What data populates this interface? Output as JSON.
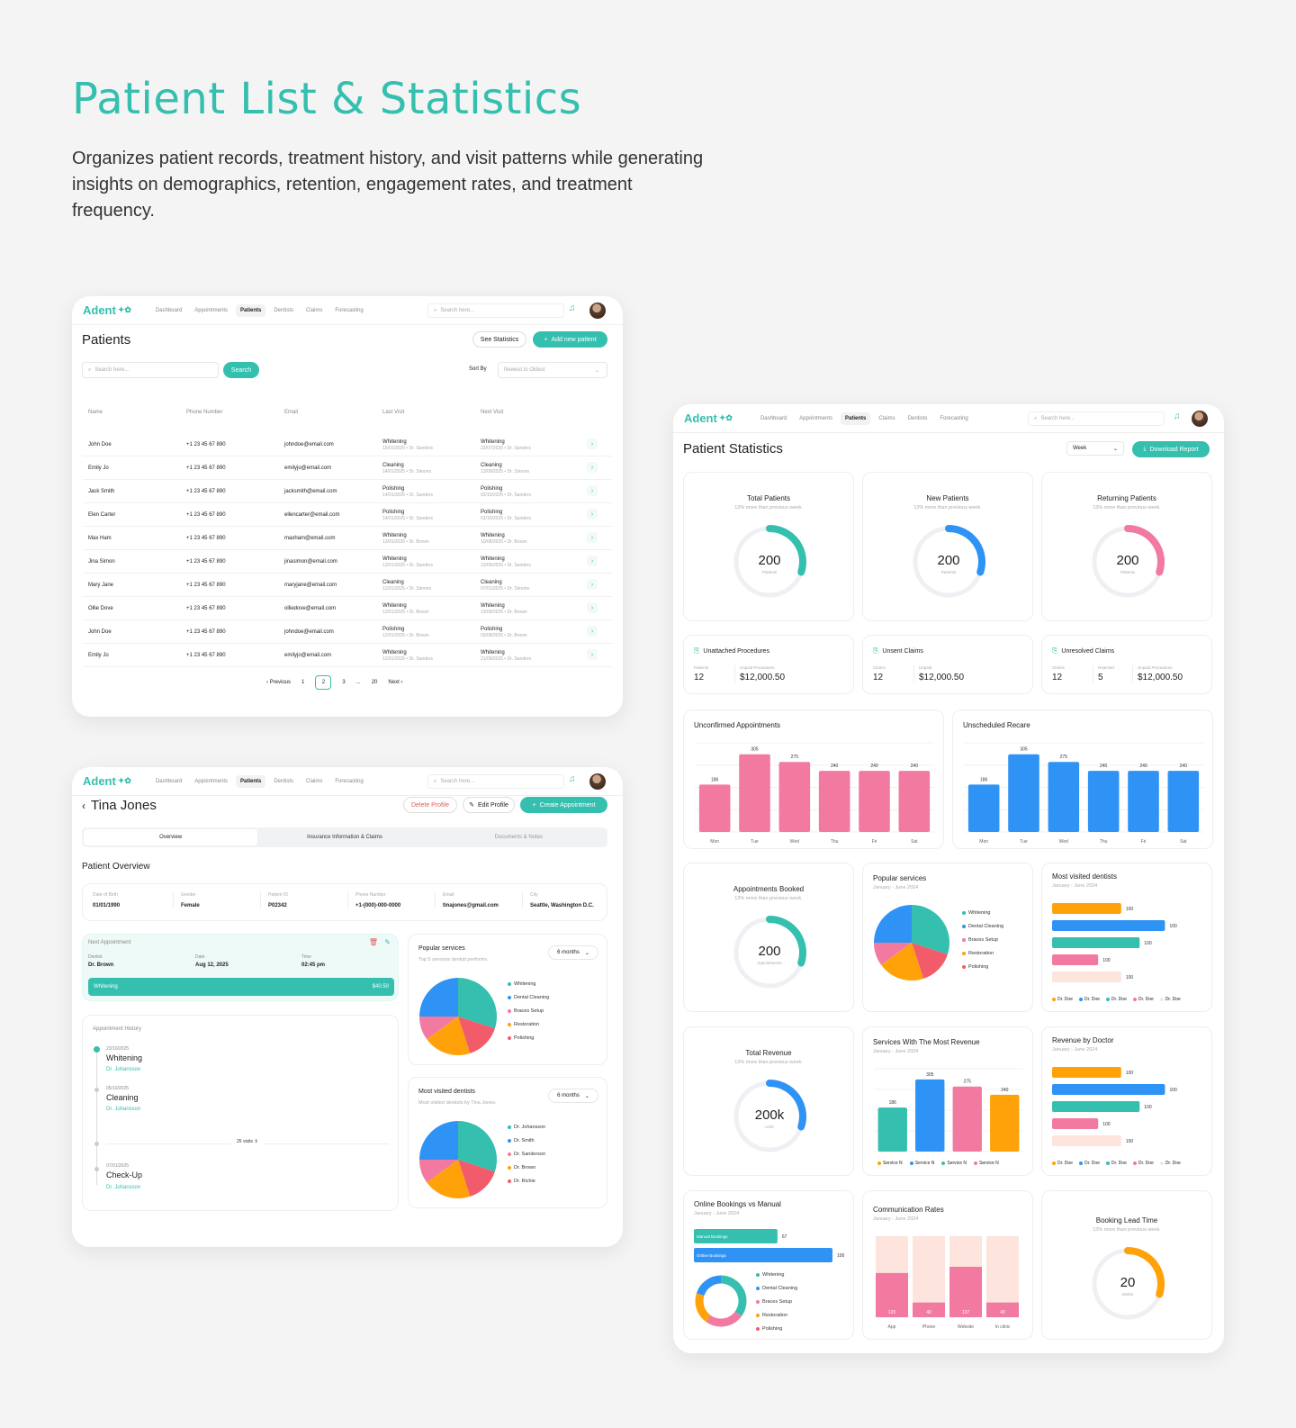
{
  "hero": {
    "title": "Patient List & Statistics",
    "description": "Organizes patient records, treatment history, and visit patterns while generating insights on demographics, retention, engagement rates, and treatment frequency."
  },
  "brand": {
    "name": "Adent",
    "accent": "#35bfae"
  },
  "nav": {
    "items": [
      "Dashboard",
      "Appointments",
      "Patients",
      "Dentists",
      "Claims",
      "Forecasting"
    ],
    "items_stats": [
      "Dashboard",
      "Appointments",
      "Patients",
      "Claims",
      "Dentists",
      "Forecasting"
    ],
    "active": "Patients",
    "search_placeholder": "Search here..."
  },
  "patients": {
    "title": "Patients",
    "see_statistics": "See Statistics",
    "add_new": "Add new patient",
    "search_placeholder": "Search here...",
    "search_button": "Search",
    "sort_label": "Sort By",
    "sort_value": "Newest to Oldest",
    "columns": [
      "Name",
      "Phone Number",
      "Email",
      "Last Visit",
      "Next Visit"
    ],
    "rows": [
      {
        "name": "John Doe",
        "phone": "+1 23 45 67 890",
        "email": "johndoe@email.com",
        "last": "Whitening",
        "last_sub": "15/01/2025 • Dr. Sanders",
        "next": "Whitening",
        "next_sub": "23/07/2025 • Dr. Sanders"
      },
      {
        "name": "Emily Jo",
        "phone": "+1 23 45 67 890",
        "email": "emilyjo@email.com",
        "last": "Cleaning",
        "last_sub": "14/01/2025 • Dr. Simons",
        "next": "Cleaning",
        "next_sub": "13/09/2025 • Dr. Simons"
      },
      {
        "name": "Jack Smith",
        "phone": "+1 23 45 67 890",
        "email": "jacksmith@email.com",
        "last": "Polishing",
        "last_sub": "14/01/2025 • Dr. Sanders",
        "next": "Polishing",
        "next_sub": "02/10/2025 • Dr. Sanders"
      },
      {
        "name": "Elen Carter",
        "phone": "+1 23 45 67 890",
        "email": "ellencarter@email.com",
        "last": "Polishing",
        "last_sub": "14/01/2025 • Dr. Sanders",
        "next": "Polishing",
        "next_sub": "01/10/2025 • Dr. Sanders"
      },
      {
        "name": "Max Ham",
        "phone": "+1 23 45 67 890",
        "email": "maxham@email.com",
        "last": "Whitening",
        "last_sub": "13/01/2025 • Dr. Brown",
        "next": "Whitening",
        "next_sub": "10/08/2025 • Dr. Brown"
      },
      {
        "name": "Jina Simon",
        "phone": "+1 23 45 67 890",
        "email": "jinasimon@email.com",
        "last": "Whitening",
        "last_sub": "13/01/2025 • Dr. Sanders",
        "next": "Whitening",
        "next_sub": "13/09/2025 • Dr. Sanders"
      },
      {
        "name": "Mary Jane",
        "phone": "+1 23 45 67 890",
        "email": "maryjane@email.com",
        "last": "Cleaning",
        "last_sub": "12/01/2025 • Dr. Simons",
        "next": "Cleaning",
        "next_sub": "07/01/2025 • Dr. Simons"
      },
      {
        "name": "Ollie Dove",
        "phone": "+1 23 45 67 890",
        "email": "olliedove@email.com",
        "last": "Whitening",
        "last_sub": "12/01/2025 • Dr. Brown",
        "next": "Whitening",
        "next_sub": "13/09/2025 • Dr. Brown"
      },
      {
        "name": "John Doe",
        "phone": "+1 23 45 67 890",
        "email": "johndoe@email.com",
        "last": "Polishing",
        "last_sub": "12/01/2025 • Dr. Brown",
        "next": "Polishing",
        "next_sub": "02/08/2025 • Dr. Brown"
      },
      {
        "name": "Emily Jo",
        "phone": "+1 23 45 67 890",
        "email": "emilyjo@email.com",
        "last": "Whitening",
        "last_sub": "12/01/2025 • Dr. Sanders",
        "next": "Whitening",
        "next_sub": "21/09/2025 • Dr. Sanders"
      }
    ],
    "pagination": {
      "prev": "Previous",
      "pages": [
        "1",
        "2",
        "3",
        "...",
        "20"
      ],
      "current": "2",
      "next": "Next"
    }
  },
  "profile": {
    "name": "Tina Jones",
    "delete": "Delete Profile",
    "edit": "Edit Profile",
    "create": "Create Appointment",
    "tabs": [
      "Overview",
      "Insurance Information & Claims",
      "Documents & Notes"
    ],
    "section": "Patient Overview",
    "info": [
      {
        "label": "Date of Birth",
        "value": "01/01/1990"
      },
      {
        "label": "Gender",
        "value": "Female"
      },
      {
        "label": "Patient ID",
        "value": "P02342"
      },
      {
        "label": "Phone Number",
        "value": "+1-(000)-000-0000"
      },
      {
        "label": "Email",
        "value": "tinajones@gmail.com"
      },
      {
        "label": "City",
        "value": "Seattle, Washington D.C."
      }
    ],
    "next_appt": {
      "title": "Next Appointment",
      "dentist_label": "Dentist",
      "dentist": "Dr. Brown",
      "date_label": "Date",
      "date": "Aug 12, 2025",
      "time_label": "Time",
      "time": "02:45 pm",
      "service": "Whitening",
      "price": "$40.50"
    },
    "history": {
      "title": "Appointment History",
      "items": [
        {
          "date": "23/10/2025",
          "name": "Whitening",
          "doctor": "Dr. Johansson"
        },
        {
          "date": "05/10/2025",
          "name": "Cleaning",
          "doctor": "Dr. Johansson"
        },
        {
          "date": "07/01/2025",
          "name": "Check-Up",
          "doctor": "Dr. Johansson"
        }
      ],
      "more": "25 visits"
    },
    "popular": {
      "title": "Popular services",
      "sub": "Top 5 services dentist performs.",
      "period": "6 months",
      "legend": [
        "Whitening",
        "Dental Cleaning",
        "Braces Setup",
        "Restoration",
        "Polishing"
      ]
    },
    "dentists": {
      "title": "Most visited dentists",
      "sub": "Most visited dentists by Tina Jones.",
      "period": "6 months",
      "legend": [
        "Dr. Johansson",
        "Dr. Smith",
        "Dr. Sanderson",
        "Dr. Brown",
        "Dr. Richie"
      ]
    }
  },
  "stats": {
    "title": "Patient Statistics",
    "period": "Week",
    "download": "Download Report",
    "gauges": [
      {
        "title": "Total Patients",
        "sub": "13% more than previous week.",
        "value": "200",
        "unit": "Patients",
        "color": "#35bfae",
        "fraction": 0.3
      },
      {
        "title": "New Patients",
        "sub": "13% more than previous week.",
        "value": "200",
        "unit": "Patients",
        "color": "#2f93f5",
        "fraction": 0.3
      },
      {
        "title": "Returning Patients",
        "sub": "13% more than previous week.",
        "value": "200",
        "unit": "Patients",
        "color": "#f27aa0",
        "fraction": 0.3
      }
    ],
    "mini": [
      {
        "title": "Unattached Procedures",
        "cols": [
          {
            "label": "Patients",
            "value": "12"
          },
          {
            "label": "Unpaid Procedures",
            "value": "$12,000.50"
          }
        ]
      },
      {
        "title": "Unsent Claims",
        "cols": [
          {
            "label": "Claims",
            "value": "12"
          },
          {
            "label": "Unpaid",
            "value": "$12,000.50"
          }
        ]
      },
      {
        "title": "Unresolved Claims",
        "cols": [
          {
            "label": "Claims",
            "value": "12"
          },
          {
            "label": "Rejected",
            "value": "5"
          },
          {
            "label": "Unpaid Procedures",
            "value": "$12,000.50"
          }
        ]
      }
    ],
    "unconfirmed": {
      "title": "Unconfirmed Appointments"
    },
    "unscheduled": {
      "title": "Unscheduled Recare"
    },
    "appts_booked": {
      "title": "Appointments Booked",
      "sub": "13% more than previous week.",
      "value": "200",
      "unit": "Appointments",
      "fraction": 0.3
    },
    "popular": {
      "title": "Popular services",
      "sub": "January - June 2024",
      "legend": [
        "Whitening",
        "Dental Cleaning",
        "Braces Setup",
        "Restoration",
        "Polishing"
      ]
    },
    "most_visited": {
      "title": "Most visited dentists",
      "sub": "January - June 2024",
      "legend": [
        "Dr. Doe",
        "Dr. Doe",
        "Dr. Doe",
        "Dr. Doe",
        "Dr. Doe"
      ]
    },
    "total_revenue": {
      "title": "Total Revenue",
      "sub": "13% more than previous week.",
      "value": "200k",
      "unit": "USD",
      "fraction": 0.3
    },
    "services_revenue": {
      "title": "Services With The Most Revenue",
      "sub": "January - June 2024",
      "legend": [
        "Service N",
        "Service N",
        "Service N",
        "Service N"
      ]
    },
    "revenue_doctor": {
      "title": "Revenue by Doctor",
      "sub": "January - June 2024",
      "legend": [
        "Dr. Doe",
        "Dr. Doe",
        "Dr. Doe",
        "Dr. Doe",
        "Dr. Doe"
      ]
    },
    "online_manual": {
      "title": "Online Bookings vs Manual",
      "sub": "January - June 2024",
      "legend": [
        "Whitening",
        "Dental Cleaning",
        "Braces Setup",
        "Restoration",
        "Polishing"
      ]
    },
    "communication": {
      "title": "Communication Rates",
      "sub": "January - June 2024"
    },
    "lead_time": {
      "title": "Booking Lead Time",
      "sub": "13% more than previous week.",
      "value": "20",
      "unit": "Mnths",
      "fraction": 0.3
    }
  },
  "chart_data": [
    {
      "type": "bar",
      "title": "Unconfirmed Appointments",
      "categories": [
        "Mon",
        "Tue",
        "Wed",
        "Thu",
        "Fri",
        "Sat"
      ],
      "values": [
        186,
        305,
        275,
        240,
        240,
        240
      ],
      "color": "#f27aa0"
    },
    {
      "type": "bar",
      "title": "Unscheduled Recare",
      "categories": [
        "Mon",
        "Tue",
        "Wed",
        "Thu",
        "Fri",
        "Sat"
      ],
      "values": [
        186,
        305,
        275,
        240,
        240,
        240
      ],
      "color": "#2f93f5"
    },
    {
      "type": "bar",
      "title": "Most visited dentists",
      "orientation": "horizontal",
      "values": [
        100,
        100,
        100,
        100,
        100
      ],
      "colors": [
        "#ffa20a",
        "#2f93f5",
        "#35bfae",
        "#f27aa0",
        "#fde4dc"
      ]
    },
    {
      "type": "bar",
      "title": "Services With The Most Revenue",
      "categories": [
        "Service N",
        "Service N",
        "Service N",
        "Service N"
      ],
      "values": [
        186,
        305,
        275,
        240
      ],
      "colors": [
        "#35bfae",
        "#2f93f5",
        "#f27aa0",
        "#ffa20a"
      ]
    },
    {
      "type": "bar",
      "title": "Revenue by Doctor",
      "orientation": "horizontal",
      "values": [
        100,
        100,
        100,
        100,
        100
      ],
      "colors": [
        "#ffa20a",
        "#2f93f5",
        "#35bfae",
        "#f27aa0",
        "#fde4dc"
      ]
    },
    {
      "type": "bar",
      "title": "Online Bookings vs Manual",
      "orientation": "horizontal",
      "categories": [
        "Manual Bookings",
        "Online Bookings"
      ],
      "values": [
        67,
        100
      ],
      "colors": [
        "#35bfae",
        "#2f93f5"
      ]
    },
    {
      "type": "bar",
      "title": "Communication Rates",
      "categories": [
        "App",
        "Phone",
        "Website",
        "In clinic"
      ],
      "values": [
        120,
        40,
        137,
        40
      ]
    },
    {
      "type": "pie",
      "title": "Popular services",
      "categories": [
        "Whitening",
        "Dental Cleaning",
        "Braces Setup",
        "Restoration",
        "Polishing"
      ],
      "values": [
        30,
        25,
        10,
        20,
        15
      ],
      "colors": [
        "#35bfae",
        "#2f93f5",
        "#f27aa0",
        "#ffa20a",
        "#f25c6a"
      ]
    }
  ]
}
